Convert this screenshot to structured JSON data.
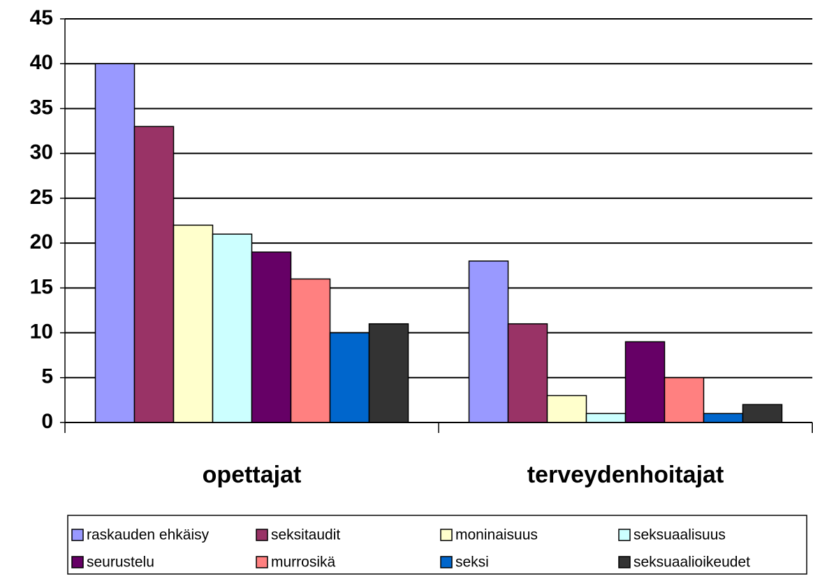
{
  "chart_data": {
    "type": "bar",
    "categories": [
      "opettajat",
      "terveydenhoitajat"
    ],
    "series": [
      {
        "name": "raskauden ehkäisy",
        "color": "#9999ff",
        "values": [
          40,
          18
        ]
      },
      {
        "name": "seksitaudit",
        "color": "#993366",
        "values": [
          33,
          11
        ]
      },
      {
        "name": "moninaisuus",
        "color": "#ffffcc",
        "values": [
          22,
          3
        ]
      },
      {
        "name": "seksuaalisuus",
        "color": "#ccffff",
        "values": [
          21,
          1
        ]
      },
      {
        "name": "seurustelu",
        "color": "#660066",
        "values": [
          19,
          9
        ]
      },
      {
        "name": "murrosikä",
        "color": "#ff8080",
        "values": [
          16,
          5
        ]
      },
      {
        "name": "seksi",
        "color": "#0066cc",
        "values": [
          10,
          1
        ]
      },
      {
        "name": "seksuaalioikeudet",
        "color": "#333333",
        "values": [
          11,
          2
        ]
      }
    ],
    "ylim": [
      0,
      45
    ],
    "yticks": [
      0,
      5,
      10,
      15,
      20,
      25,
      30,
      35,
      40,
      45
    ],
    "grid": true,
    "legend": "bottom"
  }
}
